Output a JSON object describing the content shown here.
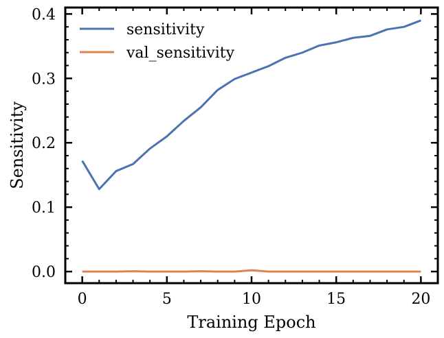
{
  "chart_data": {
    "type": "line",
    "xlabel": "Training Epoch",
    "ylabel": "Sensitivity",
    "xlim": [
      -1,
      21
    ],
    "ylim": [
      -0.018,
      0.41
    ],
    "xticks": [
      0,
      5,
      10,
      15,
      20
    ],
    "xtick_labels": [
      "0",
      "5",
      "10",
      "15",
      "20"
    ],
    "yticks": [
      0.0,
      0.1,
      0.2,
      0.3,
      0.4
    ],
    "ytick_labels": [
      "0.0",
      "0.1",
      "0.2",
      "0.3",
      "0.4"
    ],
    "grid": false,
    "legend_position": "upper-left",
    "x": [
      0,
      1,
      2,
      3,
      4,
      5,
      6,
      7,
      8,
      9,
      10,
      11,
      12,
      13,
      14,
      15,
      16,
      17,
      18,
      19,
      20
    ],
    "series": [
      {
        "name": "sensitivity",
        "color": "#4c72b0",
        "values": [
          0.172,
          0.128,
          0.156,
          0.167,
          0.191,
          0.21,
          0.234,
          0.255,
          0.282,
          0.299,
          0.309,
          0.319,
          0.332,
          0.34,
          0.351,
          0.356,
          0.363,
          0.366,
          0.376,
          0.38,
          0.39
        ]
      },
      {
        "name": "val_sensitivity",
        "color": "#dd8452",
        "values": [
          0.0,
          0.0,
          0.0,
          0.0005,
          0.0,
          0.0,
          0.0,
          0.0005,
          0.0,
          0.0,
          0.002,
          0.0,
          0.0,
          0.0,
          0.0,
          0.0,
          0.0,
          0.0,
          0.0,
          0.0,
          0.0
        ]
      }
    ]
  }
}
